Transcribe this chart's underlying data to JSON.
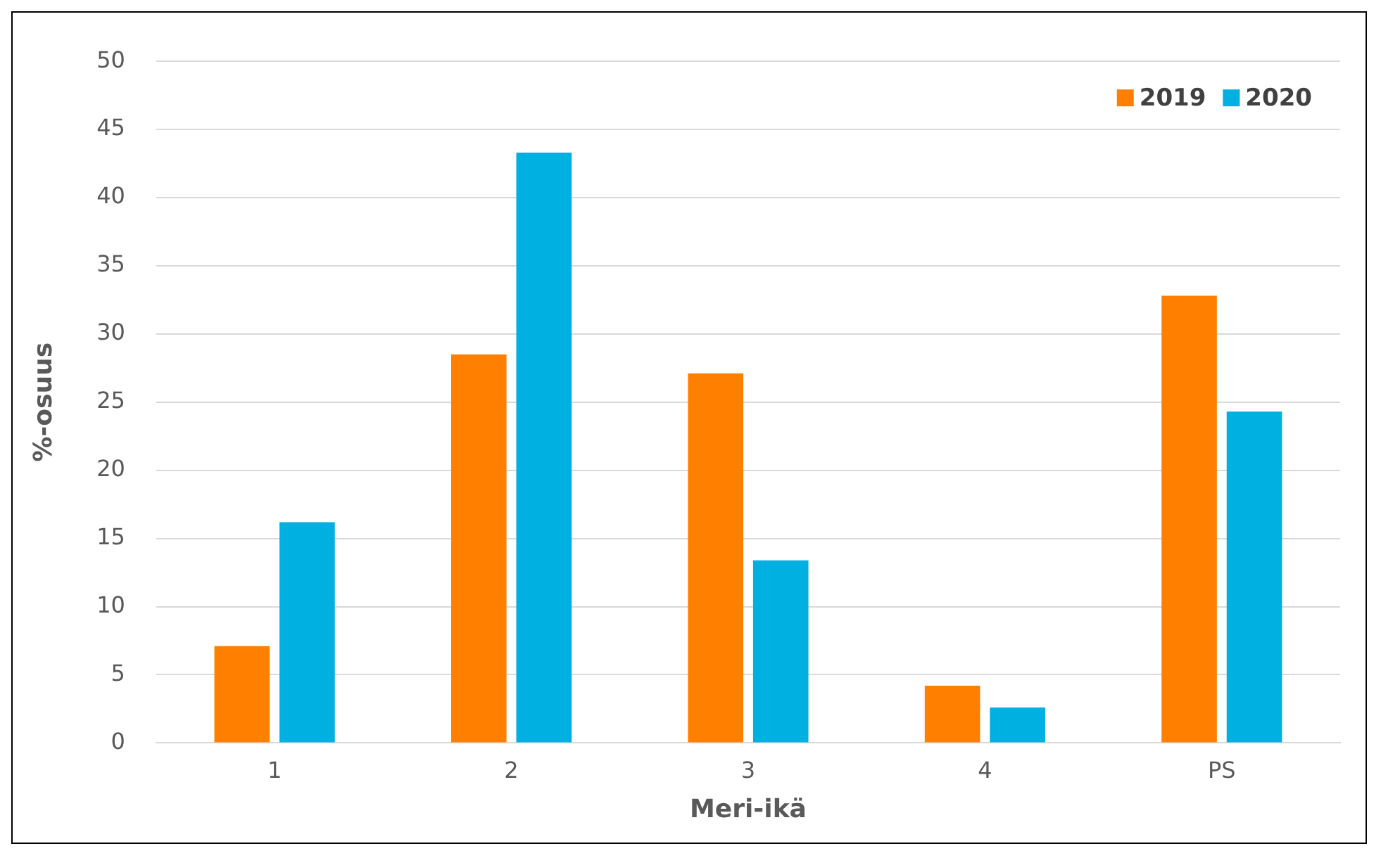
{
  "chart_data": {
    "type": "bar",
    "xlabel": "Meri-ikä",
    "ylabel": "%-osuus",
    "categories": [
      "1",
      "2",
      "3",
      "4",
      "PS"
    ],
    "series": [
      {
        "name": "2019",
        "color": "#ff8000",
        "values": [
          7.1,
          28.5,
          27.1,
          4.2,
          32.8
        ]
      },
      {
        "name": "2020",
        "color": "#00b0e0",
        "values": [
          16.2,
          43.3,
          13.4,
          2.6,
          24.3
        ]
      }
    ],
    "ylim": [
      0,
      50
    ],
    "yticks": [
      0,
      5,
      10,
      15,
      20,
      25,
      30,
      35,
      40,
      45,
      50
    ],
    "grid": "y",
    "legend": "top right"
  }
}
